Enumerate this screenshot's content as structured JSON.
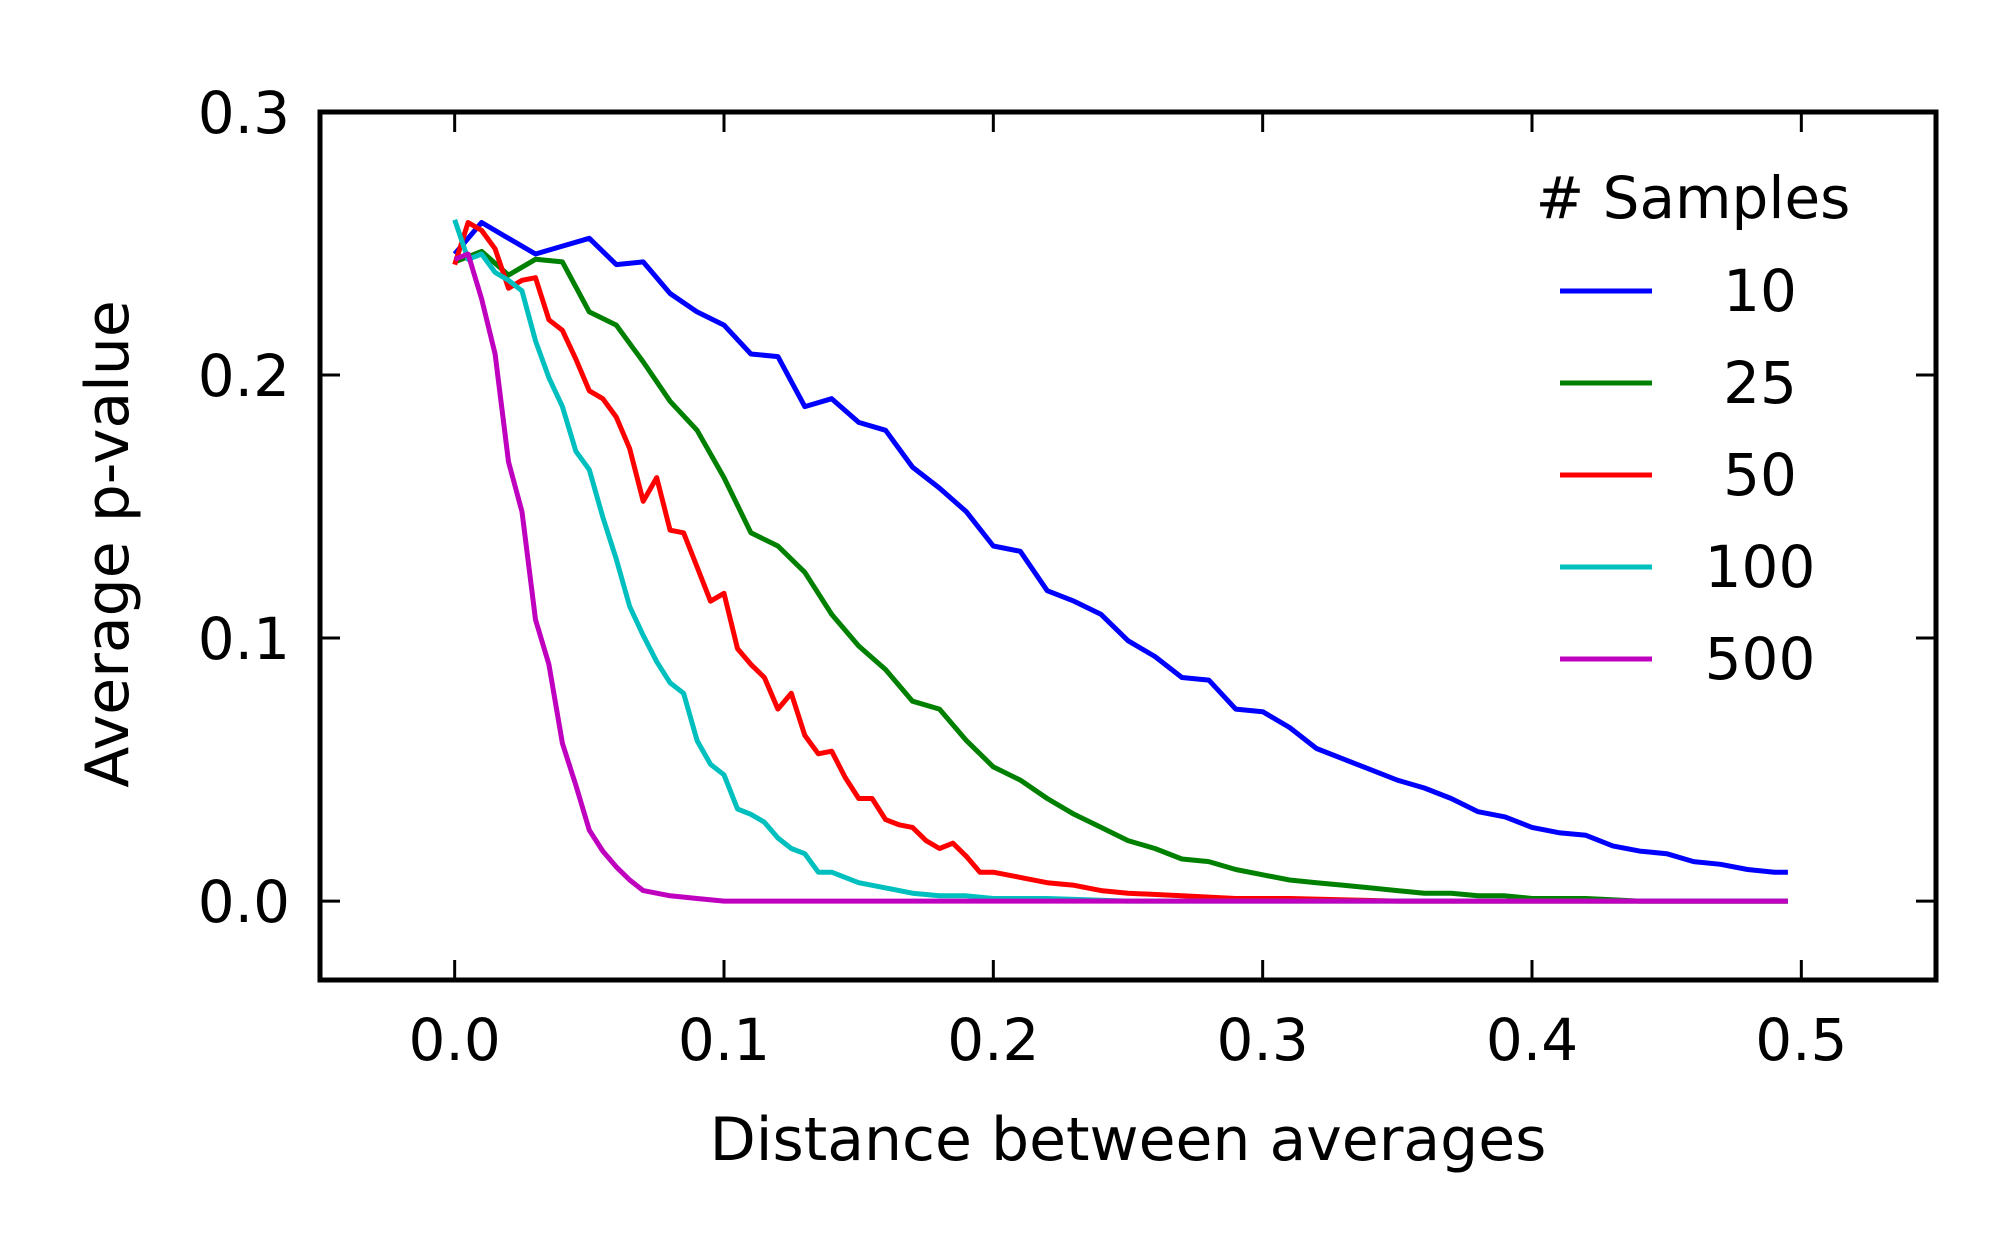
{
  "chart_data": {
    "type": "line",
    "title": "",
    "xlabel": "Distance between averages",
    "ylabel": "Average p-value",
    "xlim": [
      -0.05,
      0.55
    ],
    "ylim": [
      -0.03,
      0.3
    ],
    "xticks": [
      "0.0",
      "0.1",
      "0.2",
      "0.3",
      "0.4",
      "0.5"
    ],
    "yticks": [
      "0.0",
      "0.1",
      "0.2",
      "0.3"
    ],
    "grid": false,
    "legend": {
      "title": "# Samples",
      "position": "top-right"
    },
    "series": [
      {
        "name": "10",
        "color": "#0000ff",
        "points": [
          [
            0.0,
            0.246
          ],
          [
            0.01,
            0.258
          ],
          [
            0.02,
            0.252
          ],
          [
            0.03,
            0.246
          ],
          [
            0.04,
            0.249
          ],
          [
            0.05,
            0.252
          ],
          [
            0.06,
            0.242
          ],
          [
            0.07,
            0.243
          ],
          [
            0.08,
            0.231
          ],
          [
            0.09,
            0.224
          ],
          [
            0.1,
            0.219
          ],
          [
            0.11,
            0.208
          ],
          [
            0.12,
            0.207
          ],
          [
            0.13,
            0.188
          ],
          [
            0.14,
            0.191
          ],
          [
            0.15,
            0.182
          ],
          [
            0.16,
            0.179
          ],
          [
            0.17,
            0.165
          ],
          [
            0.18,
            0.157
          ],
          [
            0.19,
            0.148
          ],
          [
            0.2,
            0.135
          ],
          [
            0.21,
            0.133
          ],
          [
            0.22,
            0.118
          ],
          [
            0.23,
            0.114
          ],
          [
            0.24,
            0.109
          ],
          [
            0.25,
            0.099
          ],
          [
            0.26,
            0.093
          ],
          [
            0.27,
            0.085
          ],
          [
            0.28,
            0.084
          ],
          [
            0.29,
            0.073
          ],
          [
            0.3,
            0.072
          ],
          [
            0.31,
            0.066
          ],
          [
            0.32,
            0.058
          ],
          [
            0.33,
            0.054
          ],
          [
            0.34,
            0.05
          ],
          [
            0.35,
            0.046
          ],
          [
            0.36,
            0.043
          ],
          [
            0.37,
            0.039
          ],
          [
            0.38,
            0.034
          ],
          [
            0.39,
            0.032
          ],
          [
            0.4,
            0.028
          ],
          [
            0.41,
            0.026
          ],
          [
            0.42,
            0.025
          ],
          [
            0.43,
            0.021
          ],
          [
            0.44,
            0.019
          ],
          [
            0.45,
            0.018
          ],
          [
            0.46,
            0.015
          ],
          [
            0.47,
            0.014
          ],
          [
            0.48,
            0.012
          ],
          [
            0.49,
            0.011
          ],
          [
            0.495,
            0.011
          ]
        ]
      },
      {
        "name": "25",
        "color": "#008000",
        "points": [
          [
            0.0,
            0.243
          ],
          [
            0.01,
            0.247
          ],
          [
            0.02,
            0.238
          ],
          [
            0.03,
            0.244
          ],
          [
            0.04,
            0.243
          ],
          [
            0.05,
            0.224
          ],
          [
            0.06,
            0.219
          ],
          [
            0.07,
            0.205
          ],
          [
            0.08,
            0.19
          ],
          [
            0.09,
            0.179
          ],
          [
            0.1,
            0.161
          ],
          [
            0.11,
            0.14
          ],
          [
            0.12,
            0.135
          ],
          [
            0.13,
            0.125
          ],
          [
            0.14,
            0.109
          ],
          [
            0.15,
            0.097
          ],
          [
            0.16,
            0.088
          ],
          [
            0.17,
            0.076
          ],
          [
            0.18,
            0.073
          ],
          [
            0.19,
            0.061
          ],
          [
            0.2,
            0.051
          ],
          [
            0.21,
            0.046
          ],
          [
            0.22,
            0.039
          ],
          [
            0.23,
            0.033
          ],
          [
            0.24,
            0.028
          ],
          [
            0.25,
            0.023
          ],
          [
            0.26,
            0.02
          ],
          [
            0.27,
            0.016
          ],
          [
            0.28,
            0.015
          ],
          [
            0.29,
            0.012
          ],
          [
            0.3,
            0.01
          ],
          [
            0.31,
            0.008
          ],
          [
            0.32,
            0.007
          ],
          [
            0.33,
            0.006
          ],
          [
            0.34,
            0.005
          ],
          [
            0.35,
            0.004
          ],
          [
            0.36,
            0.003
          ],
          [
            0.37,
            0.003
          ],
          [
            0.38,
            0.002
          ],
          [
            0.39,
            0.002
          ],
          [
            0.4,
            0.001
          ],
          [
            0.42,
            0.001
          ],
          [
            0.44,
            0.0
          ],
          [
            0.46,
            0.0
          ],
          [
            0.48,
            0.0
          ],
          [
            0.495,
            0.0
          ]
        ]
      },
      {
        "name": "50",
        "color": "#ff0000",
        "points": [
          [
            0.0,
            0.242
          ],
          [
            0.005,
            0.258
          ],
          [
            0.01,
            0.255
          ],
          [
            0.015,
            0.248
          ],
          [
            0.02,
            0.233
          ],
          [
            0.025,
            0.236
          ],
          [
            0.03,
            0.237
          ],
          [
            0.035,
            0.221
          ],
          [
            0.04,
            0.217
          ],
          [
            0.045,
            0.206
          ],
          [
            0.05,
            0.194
          ],
          [
            0.055,
            0.191
          ],
          [
            0.06,
            0.184
          ],
          [
            0.065,
            0.172
          ],
          [
            0.07,
            0.152
          ],
          [
            0.075,
            0.161
          ],
          [
            0.08,
            0.141
          ],
          [
            0.085,
            0.14
          ],
          [
            0.09,
            0.127
          ],
          [
            0.095,
            0.114
          ],
          [
            0.1,
            0.117
          ],
          [
            0.105,
            0.096
          ],
          [
            0.11,
            0.09
          ],
          [
            0.115,
            0.085
          ],
          [
            0.12,
            0.073
          ],
          [
            0.125,
            0.079
          ],
          [
            0.13,
            0.063
          ],
          [
            0.135,
            0.056
          ],
          [
            0.14,
            0.057
          ],
          [
            0.145,
            0.047
          ],
          [
            0.15,
            0.039
          ],
          [
            0.155,
            0.039
          ],
          [
            0.16,
            0.031
          ],
          [
            0.165,
            0.029
          ],
          [
            0.17,
            0.028
          ],
          [
            0.175,
            0.023
          ],
          [
            0.18,
            0.02
          ],
          [
            0.185,
            0.022
          ],
          [
            0.19,
            0.017
          ],
          [
            0.195,
            0.011
          ],
          [
            0.2,
            0.011
          ],
          [
            0.21,
            0.009
          ],
          [
            0.22,
            0.007
          ],
          [
            0.23,
            0.006
          ],
          [
            0.24,
            0.004
          ],
          [
            0.25,
            0.003
          ],
          [
            0.27,
            0.002
          ],
          [
            0.29,
            0.001
          ],
          [
            0.31,
            0.001
          ],
          [
            0.35,
            0.0
          ],
          [
            0.4,
            0.0
          ],
          [
            0.45,
            0.0
          ],
          [
            0.495,
            0.0
          ]
        ]
      },
      {
        "name": "100",
        "color": "#00bfbf",
        "points": [
          [
            0.0,
            0.259
          ],
          [
            0.005,
            0.244
          ],
          [
            0.01,
            0.246
          ],
          [
            0.015,
            0.239
          ],
          [
            0.02,
            0.236
          ],
          [
            0.025,
            0.232
          ],
          [
            0.03,
            0.213
          ],
          [
            0.035,
            0.199
          ],
          [
            0.04,
            0.188
          ],
          [
            0.045,
            0.171
          ],
          [
            0.05,
            0.164
          ],
          [
            0.055,
            0.146
          ],
          [
            0.06,
            0.13
          ],
          [
            0.065,
            0.112
          ],
          [
            0.07,
            0.101
          ],
          [
            0.075,
            0.091
          ],
          [
            0.08,
            0.083
          ],
          [
            0.085,
            0.079
          ],
          [
            0.09,
            0.061
          ],
          [
            0.095,
            0.052
          ],
          [
            0.1,
            0.048
          ],
          [
            0.105,
            0.035
          ],
          [
            0.11,
            0.033
          ],
          [
            0.115,
            0.03
          ],
          [
            0.12,
            0.024
          ],
          [
            0.125,
            0.02
          ],
          [
            0.13,
            0.018
          ],
          [
            0.135,
            0.011
          ],
          [
            0.14,
            0.011
          ],
          [
            0.15,
            0.007
          ],
          [
            0.16,
            0.005
          ],
          [
            0.17,
            0.003
          ],
          [
            0.18,
            0.002
          ],
          [
            0.19,
            0.002
          ],
          [
            0.2,
            0.001
          ],
          [
            0.22,
            0.001
          ],
          [
            0.25,
            0.0
          ],
          [
            0.3,
            0.0
          ],
          [
            0.35,
            0.0
          ],
          [
            0.4,
            0.0
          ],
          [
            0.45,
            0.0
          ],
          [
            0.495,
            0.0
          ]
        ]
      },
      {
        "name": "500",
        "color": "#bf00bf",
        "points": [
          [
            0.0,
            0.244
          ],
          [
            0.005,
            0.246
          ],
          [
            0.01,
            0.229
          ],
          [
            0.015,
            0.208
          ],
          [
            0.02,
            0.167
          ],
          [
            0.025,
            0.148
          ],
          [
            0.03,
            0.107
          ],
          [
            0.035,
            0.09
          ],
          [
            0.04,
            0.06
          ],
          [
            0.045,
            0.044
          ],
          [
            0.05,
            0.027
          ],
          [
            0.055,
            0.019
          ],
          [
            0.06,
            0.013
          ],
          [
            0.065,
            0.008
          ],
          [
            0.07,
            0.004
          ],
          [
            0.075,
            0.003
          ],
          [
            0.08,
            0.002
          ],
          [
            0.09,
            0.001
          ],
          [
            0.1,
            0.0
          ],
          [
            0.15,
            0.0
          ],
          [
            0.2,
            0.0
          ],
          [
            0.25,
            0.0
          ],
          [
            0.3,
            0.0
          ],
          [
            0.35,
            0.0
          ],
          [
            0.4,
            0.0
          ],
          [
            0.45,
            0.0
          ],
          [
            0.495,
            0.0
          ]
        ]
      }
    ]
  }
}
